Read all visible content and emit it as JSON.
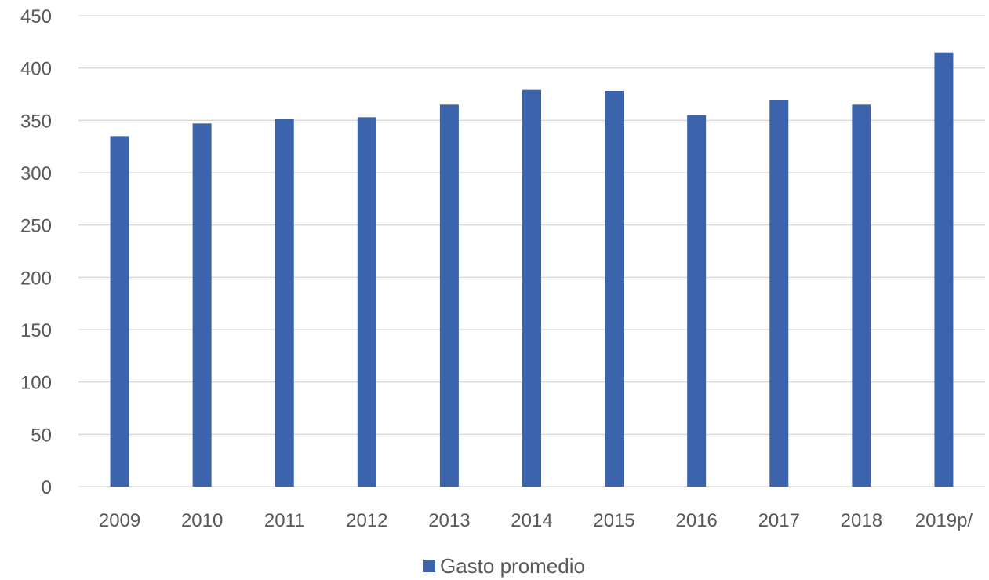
{
  "chart_data": {
    "type": "bar",
    "categories": [
      "2009",
      "2010",
      "2011",
      "2012",
      "2013",
      "2014",
      "2015",
      "2016",
      "2017",
      "2018",
      "2019p/"
    ],
    "series": [
      {
        "name": "Gasto promedio",
        "color": "#3c64ad",
        "values": [
          335,
          347,
          351,
          353,
          365,
          379,
          378,
          355,
          369,
          365,
          415
        ]
      }
    ],
    "y_ticks": [
      "0",
      "50",
      "100",
      "150",
      "200",
      "250",
      "300",
      "350",
      "400",
      "450"
    ],
    "ylim": [
      0,
      450
    ],
    "grid": true,
    "legend_position": "bottom",
    "title": "",
    "xlabel": "",
    "ylabel": ""
  }
}
